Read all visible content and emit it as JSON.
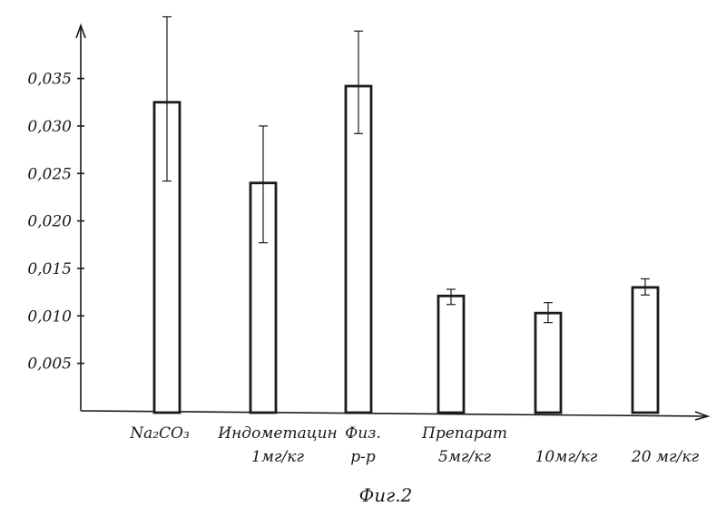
{
  "chart_data": {
    "type": "bar",
    "categories": [
      {
        "lines": [
          "Na₂CO₃"
        ]
      },
      {
        "lines": [
          "Индометацин",
          "1мг/кг"
        ]
      },
      {
        "lines": [
          "Физ.",
          "р-р"
        ]
      },
      {
        "lines": [
          "Препарат",
          "5мг/кг"
        ]
      },
      {
        "lines": [
          "10мг/кг"
        ]
      },
      {
        "lines": [
          "20 мг/кг"
        ]
      }
    ],
    "values": [
      0.0325,
      0.024,
      0.0342,
      0.0121,
      0.0103,
      0.013
    ],
    "error_low": [
      0.0242,
      0.0177,
      0.0292,
      0.0112,
      0.0093,
      0.0122
    ],
    "error_high": [
      0.0415,
      0.03,
      0.04,
      0.0128,
      0.0114,
      0.0139
    ],
    "ylim": [
      0,
      0.04
    ],
    "yticks": [
      "0,005",
      "0,010",
      "0,015",
      "0,020",
      "0,025",
      "0,030",
      "0,035"
    ],
    "ytick_values": [
      0.005,
      0.01,
      0.015,
      0.02,
      0.025,
      0.03,
      0.035
    ],
    "grid": false,
    "caption": "Фиг.2"
  }
}
